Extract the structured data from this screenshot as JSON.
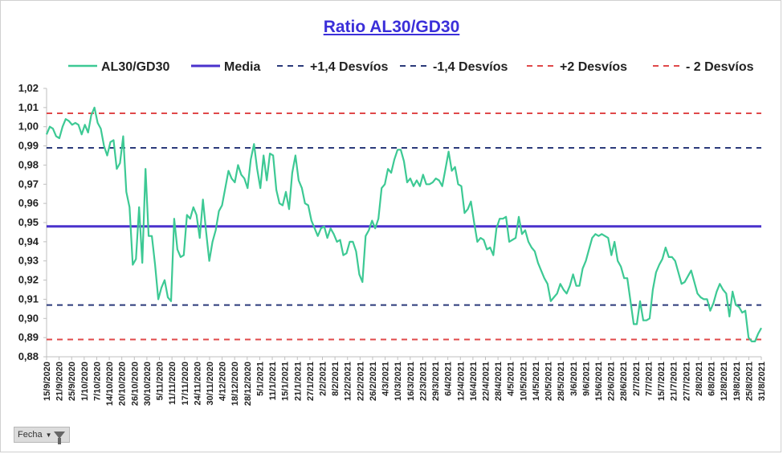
{
  "chart_data": {
    "type": "line",
    "title": "Ratio AL30/GD30",
    "xlabel": "",
    "ylabel": "",
    "ylim": [
      0.88,
      1.02
    ],
    "yticks": [
      "1,02",
      "1,01",
      "1,00",
      "0,99",
      "0,98",
      "0,97",
      "0,96",
      "0,95",
      "0,94",
      "0,93",
      "0,92",
      "0,91",
      "0,90",
      "0,89",
      "0,88"
    ],
    "xticks": [
      "15/9/2020",
      "21/9/2020",
      "25/9/2020",
      "1/10/2020",
      "7/10/2020",
      "14/10/2020",
      "20/10/2020",
      "26/10/2020",
      "30/10/2020",
      "5/11/2020",
      "11/11/2020",
      "17/11/2020",
      "24/11/2020",
      "30/11/2020",
      "4/12/2020",
      "18/12/2020",
      "28/12/2020",
      "5/1/2021",
      "11/1/2021",
      "15/1/2021",
      "21/1/2021",
      "27/1/2021",
      "2/2/2021",
      "8/2/2021",
      "12/2/2021",
      "22/2/2021",
      "26/2/2021",
      "4/3/2021",
      "10/3/2021",
      "16/3/2021",
      "22/3/2021",
      "29/3/2021",
      "6/4/2021",
      "12/4/2021",
      "16/4/2021",
      "22/4/2021",
      "28/4/2021",
      "4/5/2021",
      "10/5/2021",
      "14/5/2021",
      "20/5/2021",
      "28/5/2021",
      "3/6/2021",
      "9/6/2021",
      "15/6/2021",
      "22/6/2021",
      "28/6/2021",
      "2/7/2021",
      "7/7/2021",
      "15/7/2021",
      "21/7/2021",
      "27/7/2021",
      "2/8/2021",
      "6/8/2021",
      "12/8/2021",
      "19/8/2021",
      "25/8/2021",
      "31/8/2021"
    ],
    "grid": false,
    "legend_position": "top",
    "series": [
      {
        "name": "AL30/GD30",
        "style": "solid",
        "color": "#3dc994",
        "values": [
          0.996,
          1.0,
          0.999,
          0.995,
          0.994,
          1.0,
          1.004,
          1.003,
          1.001,
          1.002,
          1.001,
          0.996,
          1.001,
          0.997,
          1.006,
          1.01,
          1.002,
          0.999,
          0.99,
          0.985,
          0.992,
          0.993,
          0.978,
          0.981,
          0.995,
          0.966,
          0.958,
          0.928,
          0.931,
          0.958,
          0.929,
          0.978,
          0.943,
          0.943,
          0.928,
          0.91,
          0.916,
          0.92,
          0.911,
          0.909,
          0.952,
          0.936,
          0.932,
          0.933,
          0.954,
          0.952,
          0.958,
          0.954,
          0.942,
          0.962,
          0.945,
          0.93,
          0.94,
          0.946,
          0.956,
          0.959,
          0.968,
          0.977,
          0.973,
          0.971,
          0.98,
          0.975,
          0.973,
          0.968,
          0.983,
          0.991,
          0.978,
          0.968,
          0.985,
          0.972,
          0.986,
          0.985,
          0.967,
          0.96,
          0.959,
          0.966,
          0.957,
          0.976,
          0.985,
          0.972,
          0.968,
          0.96,
          0.959,
          0.951,
          0.947,
          0.943,
          0.947,
          0.948,
          0.942,
          0.947,
          0.944,
          0.94,
          0.941,
          0.933,
          0.934,
          0.94,
          0.94,
          0.935,
          0.923,
          0.919,
          0.943,
          0.946,
          0.951,
          0.947,
          0.952,
          0.968,
          0.97,
          0.978,
          0.976,
          0.983,
          0.988,
          0.988,
          0.982,
          0.971,
          0.973,
          0.969,
          0.972,
          0.969,
          0.975,
          0.97,
          0.97,
          0.971,
          0.973,
          0.972,
          0.969,
          0.978,
          0.987,
          0.977,
          0.979,
          0.97,
          0.969,
          0.955,
          0.957,
          0.961,
          0.95,
          0.94,
          0.942,
          0.941,
          0.936,
          0.937,
          0.933,
          0.947,
          0.952,
          0.952,
          0.953,
          0.94,
          0.941,
          0.942,
          0.953,
          0.944,
          0.946,
          0.94,
          0.937,
          0.935,
          0.929,
          0.925,
          0.921,
          0.918,
          0.909,
          0.911,
          0.913,
          0.918,
          0.915,
          0.913,
          0.917,
          0.923,
          0.917,
          0.917,
          0.926,
          0.93,
          0.936,
          0.942,
          0.944,
          0.943,
          0.944,
          0.943,
          0.942,
          0.933,
          0.94,
          0.93,
          0.927,
          0.921,
          0.921,
          0.909,
          0.897,
          0.897,
          0.909,
          0.899,
          0.899,
          0.9,
          0.915,
          0.924,
          0.928,
          0.931,
          0.937,
          0.932,
          0.932,
          0.93,
          0.924,
          0.918,
          0.919,
          0.922,
          0.925,
          0.919,
          0.913,
          0.911,
          0.91,
          0.91,
          0.904,
          0.908,
          0.914,
          0.918,
          0.915,
          0.913,
          0.901,
          0.914,
          0.907,
          0.906,
          0.903,
          0.904,
          0.89,
          0.888,
          0.888,
          0.892,
          0.895
        ]
      },
      {
        "name": "Media",
        "style": "solid",
        "color": "#4a32cc",
        "value": 0.948
      },
      {
        "name": "+1,4 Desvíos",
        "style": "dashed",
        "color": "#2b3a7a",
        "value": 0.989
      },
      {
        "name": "-1,4 Desvíos",
        "style": "dashed",
        "color": "#2b3a7a",
        "value": 0.907
      },
      {
        "name": "+2 Desvíos",
        "style": "dashed",
        "color": "#e0484a",
        "value": 1.007
      },
      {
        "name": "- 2 Desvíos",
        "style": "dashed",
        "color": "#e0484a",
        "value": 0.889
      }
    ]
  },
  "filter_button": {
    "label": "Fecha",
    "icon": "funnel-icon"
  }
}
